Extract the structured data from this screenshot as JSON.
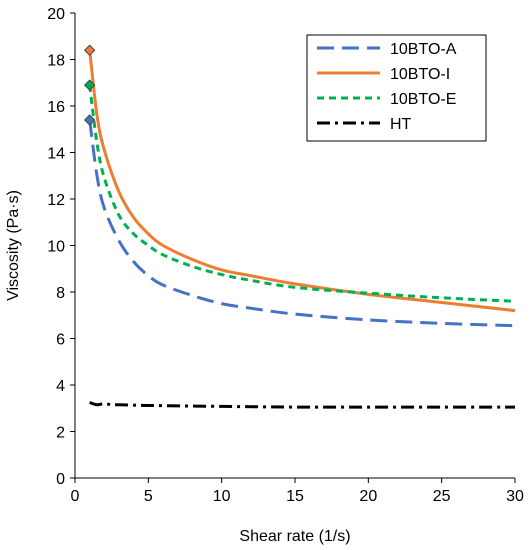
{
  "chart_data": {
    "type": "line",
    "title": "",
    "xlabel": "Shear rate (1/s)",
    "ylabel": "Viscosity (Pa·s)",
    "xlim": [
      0,
      30
    ],
    "ylim": [
      0,
      20
    ],
    "xticks": [
      0,
      5,
      10,
      15,
      20,
      25,
      30
    ],
    "yticks": [
      0,
      2,
      4,
      6,
      8,
      10,
      12,
      14,
      16,
      18,
      20
    ],
    "grid": false,
    "legend_position": "top-right",
    "series": [
      {
        "name": "10BTO-A",
        "color": "#4472C4",
        "style": "dash",
        "marker": "diamond",
        "x": [
          1,
          1.5,
          2,
          3,
          4,
          5,
          6,
          8,
          10,
          12,
          15,
          20,
          25,
          30
        ],
        "y": [
          15.4,
          13.0,
          11.6,
          10.2,
          9.3,
          8.7,
          8.3,
          7.85,
          7.5,
          7.3,
          7.05,
          6.8,
          6.65,
          6.55
        ]
      },
      {
        "name": "10BTO-I",
        "color": "#ED7D31",
        "style": "solid",
        "marker": "diamond",
        "x": [
          1,
          1.5,
          2,
          3,
          4,
          5,
          6,
          8,
          10,
          12,
          15,
          20,
          25,
          30
        ],
        "y": [
          18.4,
          15.6,
          14.1,
          12.3,
          11.2,
          10.5,
          10.0,
          9.4,
          8.95,
          8.7,
          8.35,
          7.9,
          7.55,
          7.2
        ]
      },
      {
        "name": "10BTO-E",
        "color": "#00B050",
        "style": "dot",
        "marker": "diamond",
        "x": [
          1,
          1.5,
          2,
          3,
          4,
          5,
          6,
          8,
          10,
          12,
          15,
          20,
          25,
          30
        ],
        "y": [
          16.9,
          14.4,
          12.9,
          11.3,
          10.5,
          10.0,
          9.6,
          9.1,
          8.75,
          8.5,
          8.2,
          7.95,
          7.75,
          7.6
        ]
      },
      {
        "name": "HT",
        "color": "#000000",
        "style": "dashdot",
        "marker": "none",
        "x": [
          1,
          1.5,
          2,
          2.5,
          3,
          5,
          10,
          15,
          20,
          25,
          30
        ],
        "y": [
          3.25,
          3.15,
          3.2,
          3.15,
          3.15,
          3.12,
          3.08,
          3.05,
          3.05,
          3.05,
          3.05
        ]
      }
    ]
  }
}
